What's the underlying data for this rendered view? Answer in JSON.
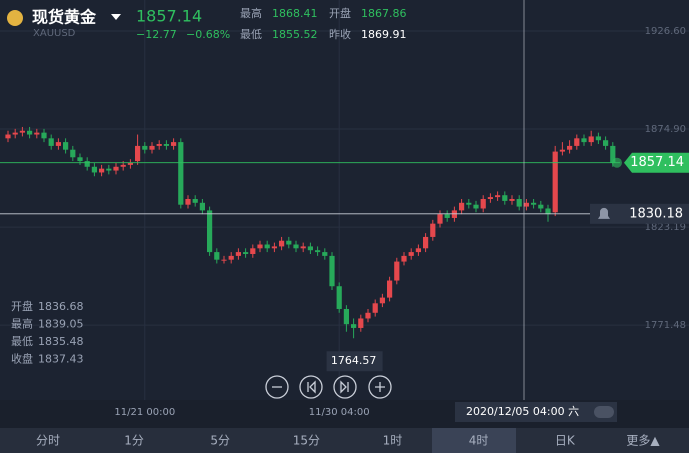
{
  "header": {
    "name": "现货黄金",
    "symbol": "XAUUSD",
    "price": "1857.14",
    "change": "−12.77",
    "change_pct": "−0.68%",
    "stats": [
      {
        "label": "最高",
        "value": "1868.41"
      },
      {
        "label": "开盘",
        "value": "1867.86"
      },
      {
        "label": "最低",
        "value": "1855.52"
      },
      {
        "label": "昨收",
        "value": "1869.91"
      }
    ]
  },
  "chart_data": {
    "type": "candlestick",
    "categories": [
      null,
      null,
      null,
      null,
      null,
      null,
      null,
      null,
      null,
      null,
      null,
      null,
      null,
      null,
      null,
      null,
      null,
      null,
      null,
      "11/21 00:00",
      null,
      null,
      null,
      null,
      null,
      null,
      null,
      null,
      null,
      null,
      null,
      null,
      null,
      null,
      null,
      null,
      null,
      null,
      null,
      null,
      null,
      null,
      null,
      null,
      null,
      null,
      "11/30 04:00",
      null,
      null,
      null,
      null,
      null,
      null,
      null,
      null,
      null,
      null,
      null,
      null,
      null,
      null,
      null,
      null,
      null,
      null,
      null,
      null,
      null,
      null,
      null,
      null,
      null,
      null,
      null,
      null,
      null,
      null,
      null,
      null,
      null,
      null,
      null,
      null,
      null,
      null
    ],
    "open": [
      1870,
      1872,
      1873,
      1874,
      1872,
      1873,
      1870,
      1866,
      1868,
      1864,
      1860,
      1858,
      1855,
      1852,
      1854,
      1853,
      1855,
      1856,
      1858,
      1866,
      1864,
      1866,
      1867,
      1866,
      1868,
      1835,
      1838,
      1836,
      1832,
      1810,
      1806,
      1806,
      1808,
      1810,
      1809,
      1812,
      1814,
      1812,
      1813,
      1816,
      1814,
      1812,
      1813,
      1811,
      1810,
      1808,
      1792,
      1780,
      1772,
      1770,
      1775,
      1778,
      1783,
      1786,
      1795,
      1805,
      1808,
      1810,
      1812,
      1818,
      1825,
      1830,
      1828,
      1832,
      1836,
      1835,
      1833,
      1838,
      1839,
      1840,
      1837,
      1838,
      1834,
      1836,
      1835,
      1833,
      1831,
      1863,
      1864,
      1866,
      1870,
      1868,
      1871,
      1869,
      1866
    ],
    "high": [
      1874,
      1875,
      1876,
      1876,
      1875,
      1875,
      1872,
      1870,
      1870,
      1866,
      1862,
      1860,
      1857,
      1856,
      1856,
      1857,
      1858,
      1859,
      1872,
      1868,
      1868,
      1869,
      1869,
      1870,
      1870,
      1840,
      1840,
      1838,
      1834,
      1812,
      1808,
      1810,
      1812,
      1812,
      1814,
      1816,
      1816,
      1815,
      1818,
      1818,
      1816,
      1815,
      1815,
      1813,
      1812,
      1810,
      1794,
      1782,
      1775,
      1777,
      1780,
      1785,
      1788,
      1797,
      1807,
      1810,
      1812,
      1814,
      1820,
      1827,
      1832,
      1832,
      1834,
      1838,
      1838,
      1837,
      1840,
      1841,
      1842,
      1842,
      1840,
      1840,
      1838,
      1838,
      1837,
      1835,
      1866,
      1868,
      1869,
      1872,
      1872,
      1874,
      1873,
      1871,
      1868
    ],
    "low": [
      1868,
      1870,
      1871,
      1870,
      1870,
      1868,
      1864,
      1864,
      1862,
      1858,
      1856,
      1853,
      1850,
      1850,
      1851,
      1851,
      1853,
      1854,
      1856,
      1862,
      1862,
      1864,
      1864,
      1864,
      1833,
      1833,
      1834,
      1830,
      1808,
      1804,
      1804,
      1804,
      1806,
      1807,
      1807,
      1810,
      1810,
      1810,
      1811,
      1812,
      1810,
      1810,
      1809,
      1808,
      1806,
      1790,
      1778,
      1768,
      1764.57,
      1768,
      1773,
      1776,
      1781,
      1784,
      1793,
      1803,
      1806,
      1808,
      1810,
      1816,
      1823,
      1826,
      1826,
      1830,
      1833,
      1831,
      1831,
      1836,
      1837,
      1835,
      1835,
      1832,
      1832,
      1833,
      1831,
      1826,
      1829,
      1861,
      1862,
      1864,
      1866,
      1866,
      1867,
      1864,
      1855
    ],
    "close": [
      1872,
      1873,
      1874,
      1872,
      1873,
      1870,
      1866,
      1868,
      1864,
      1860,
      1858,
      1855,
      1852,
      1854,
      1853,
      1855,
      1856,
      1857,
      1866,
      1864,
      1866,
      1867,
      1866,
      1868,
      1835,
      1838,
      1836,
      1832,
      1810,
      1806,
      1806,
      1808,
      1810,
      1809,
      1812,
      1814,
      1812,
      1813,
      1816,
      1814,
      1812,
      1813,
      1811,
      1810,
      1808,
      1792,
      1780,
      1772,
      1770,
      1775,
      1778,
      1783,
      1786,
      1795,
      1805,
      1808,
      1810,
      1812,
      1818,
      1825,
      1830,
      1828,
      1832,
      1836,
      1835,
      1833,
      1838,
      1839,
      1840,
      1837,
      1838,
      1834,
      1836,
      1835,
      1833,
      1830,
      1863,
      1864,
      1866,
      1870,
      1868,
      1871,
      1869,
      1866,
      1857.14
    ],
    "up_color": "#e5484d",
    "down_color": "#27a95a",
    "ylim": [
      1732,
      1926.6
    ],
    "yticks": [
      {
        "value": 1926.6,
        "label": "1926.60"
      },
      {
        "value": 1874.9,
        "label": "1874.90"
      },
      1823.19,
      1771.48
    ],
    "last_price": 1857.14,
    "low_marker": 48,
    "crosshair": {
      "price": 1830.18,
      "label": "2020/12/05 04:00 六"
    },
    "ohlc_box": {
      "labels": [
        "开盘",
        "最高",
        "最低",
        "收盘"
      ],
      "values": [
        1836.68,
        1839.05,
        1835.48,
        1837.43
      ]
    }
  },
  "tabs": [
    "分时",
    "1分",
    "5分",
    "15分",
    "1时",
    "4时",
    "日K",
    "更多▲"
  ]
}
